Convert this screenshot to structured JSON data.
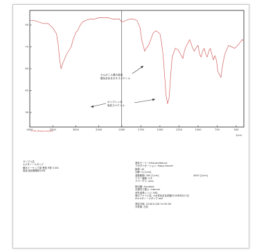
{
  "chart_data": {
    "type": "line",
    "title": "",
    "xlabel": "1/cm",
    "ylabel": "",
    "xlim": [
      4000,
      400
    ],
    "ylim": [
      20,
      100
    ],
    "x_axis_reversed": true,
    "x_ticks": [
      4000,
      3500,
      3000,
      2500,
      2000,
      1750,
      1500,
      1250,
      1000,
      750,
      500
    ],
    "x_tick_labels": [
      "4000",
      "3500",
      "3000",
      "2500",
      "2000",
      "1750",
      "1500",
      "1250",
      "1000",
      "750",
      "500"
    ],
    "y_ticks": [
      30,
      45,
      60,
      75,
      90
    ],
    "y_tick_labels": [
      "30",
      "45",
      "60",
      "75",
      "90"
    ],
    "series_color": "#d46060",
    "grid": false,
    "series": [
      {
        "name": "",
        "x": [
          4000,
          3900,
          3800,
          3700,
          3600,
          3500,
          3420,
          3380,
          3350,
          3320,
          3280,
          3200,
          3100,
          3060,
          3020,
          3000,
          2960,
          2920,
          2880,
          2850,
          2800,
          2700,
          2600,
          2500,
          2400,
          2300,
          2200,
          2100,
          2050,
          2000,
          1950,
          1900,
          1850,
          1800,
          1760,
          1740,
          1700,
          1680,
          1650,
          1620,
          1600,
          1580,
          1550,
          1500,
          1480,
          1460,
          1440,
          1420,
          1400,
          1380,
          1360,
          1340,
          1300,
          1260,
          1230,
          1200,
          1180,
          1160,
          1130,
          1110,
          1090,
          1070,
          1050,
          1030,
          1000,
          980,
          960,
          940,
          920,
          900,
          880,
          860,
          840,
          820,
          800,
          780,
          760,
          740,
          700,
          680,
          650,
          600,
          560,
          520,
          480,
          450,
          420,
          400
        ],
        "y": [
          93,
          93,
          92,
          91,
          91,
          88,
          84,
          76,
          66,
          60,
          64,
          70,
          75,
          80,
          83,
          85,
          86,
          89,
          91,
          92,
          93,
          94,
          94,
          95,
          95,
          95,
          94,
          94,
          94,
          92,
          93,
          94,
          94,
          93,
          88,
          80,
          72,
          74,
          76,
          80,
          83,
          85,
          86,
          84,
          78,
          70,
          56,
          42,
          36,
          40,
          55,
          68,
          74,
          73,
          70,
          67,
          72,
          75,
          78,
          80,
          77,
          74,
          72,
          74,
          76,
          70,
          68,
          72,
          74,
          70,
          68,
          72,
          74,
          70,
          66,
          69,
          66,
          58,
          54,
          62,
          70,
          76,
          75,
          74,
          76,
          78,
          80,
          79
        ]
      }
    ],
    "annotations": [
      {
        "text": "カルボニル基の吸収",
        "lines": [
          "カルボニル基の吸収",
          "酸化劣化を示すスペクトル"
        ]
      },
      {
        "text": "ポリプレンの",
        "lines": [
          "ポリプレンの",
          "吸収スペクトル"
        ]
      }
    ],
    "corner_label": "FTIR Measurement"
  },
  "info_left": {
    "lines": [
      "サンプル名",
      "①メタノールタンク",
      "親水イーケック部 黒色 R型 3.00L",
      "用途 飲用期間約20年"
    ]
  },
  "info_right": {
    "groups": [
      {
        "lines": [
          "測定モード: %Transmittance",
          "アポダイゼーション: Happ-Genzel",
          "積算: 40",
          "分解: 4 [1/cm]",
          "波数範囲: 400 [1/cm]",
          "ミラー速度: 2.8",
          "アパーチャ: auto"
        ],
        "range_end": "4000 [1/cm]"
      },
      {
        "lines": [
          "検出器: standard",
          "光源切り替え: Internal",
          "赤外波長レンジ: MID",
          "実行ファイル名: ①水質化劣化試験2016年8月11日",
          "#①メタノールタンク.wxf"
        ]
      },
      {
        "lines": [
          "測定日時: 2016/11/28 10:55:38",
          "分析者: 白石"
        ]
      }
    ]
  }
}
